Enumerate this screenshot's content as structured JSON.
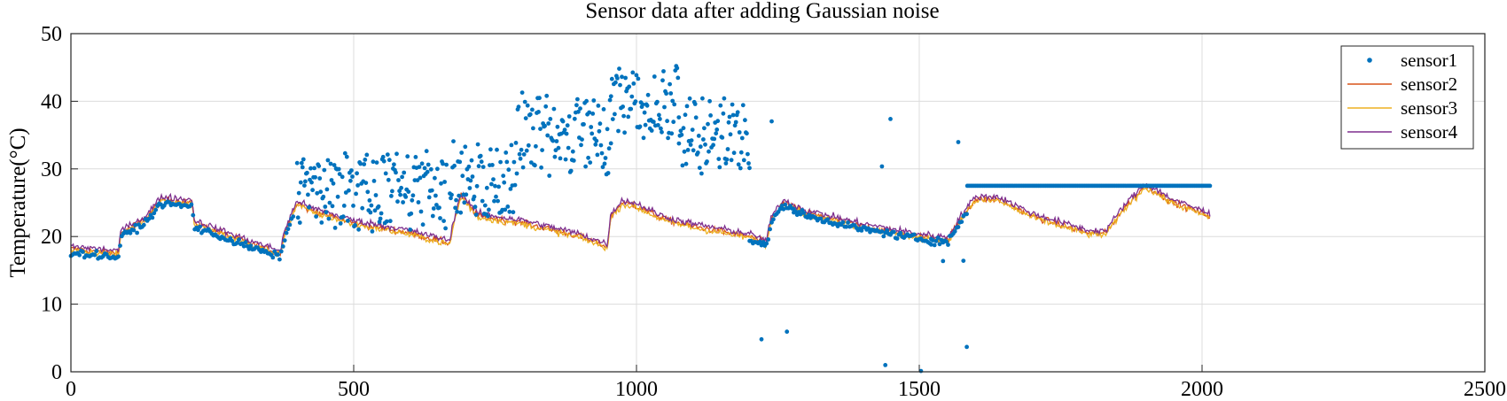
{
  "chart_data": {
    "type": "line",
    "title": "Sensor data after adding Gaussian noise",
    "xlabel": "",
    "ylabel": "Temperature(°C)",
    "xlim": [
      0,
      2500
    ],
    "ylim": [
      0,
      50
    ],
    "xticks": [
      0,
      500,
      1000,
      1500,
      2000,
      2500
    ],
    "yticks": [
      0,
      10,
      20,
      30,
      40,
      50
    ],
    "grid": true,
    "legend_position": "top-right",
    "base_profile": {
      "x": [
        0,
        85,
        88,
        130,
        160,
        215,
        218,
        300,
        370,
        378,
        400,
        420,
        500,
        600,
        670,
        678,
        690,
        720,
        800,
        900,
        948,
        955,
        975,
        1000,
        1050,
        1100,
        1200,
        1230,
        1238,
        1260,
        1300,
        1400,
        1500,
        1550,
        1580,
        1600,
        1640,
        1700,
        1800,
        1830,
        1860,
        1900,
        1950,
        2015
      ],
      "y": [
        18.2,
        17.5,
        20.5,
        22.5,
        25.5,
        25.0,
        22.0,
        19.5,
        17.5,
        20.5,
        25.0,
        24.0,
        22.0,
        20.5,
        19.0,
        22.5,
        26.0,
        23.0,
        22.0,
        20.0,
        18.5,
        23.0,
        25.0,
        24.5,
        22.5,
        21.5,
        20.0,
        19.0,
        22.5,
        25.0,
        23.5,
        21.5,
        20.0,
        19.5,
        23.5,
        25.5,
        25.5,
        23.0,
        20.5,
        20.5,
        24.0,
        27.5,
        25.0,
        23.0
      ]
    },
    "series": [
      {
        "name": "sensor1",
        "style": "markers",
        "color": "#0072BD",
        "segments": [
          {
            "x_range": [
              0,
              395
            ],
            "pattern": "noisy copy of base profile, slightly low"
          },
          {
            "x_range": [
              400,
              665
            ],
            "center_y": 27,
            "spread": 6
          },
          {
            "x_range": [
              670,
              790
            ],
            "center_y": 28.5,
            "spread": 6
          },
          {
            "x_range": [
              790,
              955
            ],
            "center_y": 35,
            "spread": 6
          },
          {
            "x_range": [
              955,
              1075
            ],
            "center_y": 40,
            "spread": 6
          },
          {
            "x_range": [
              1075,
              1200
            ],
            "center_y": 35,
            "spread": 6
          },
          {
            "x_range": [
              1200,
              1585
            ],
            "pattern": "base profile with outliers between 0 and 40"
          },
          {
            "x_range": [
              1585,
              2015
            ],
            "constant_y": 27.5
          }
        ]
      },
      {
        "name": "sensor2",
        "style": "line",
        "color": "#D95319",
        "offset": 0.0
      },
      {
        "name": "sensor3",
        "style": "line",
        "color": "#EDB120",
        "offset": -0.2
      },
      {
        "name": "sensor4",
        "style": "line",
        "color": "#7E2F8E",
        "offset": 0.4
      }
    ]
  }
}
